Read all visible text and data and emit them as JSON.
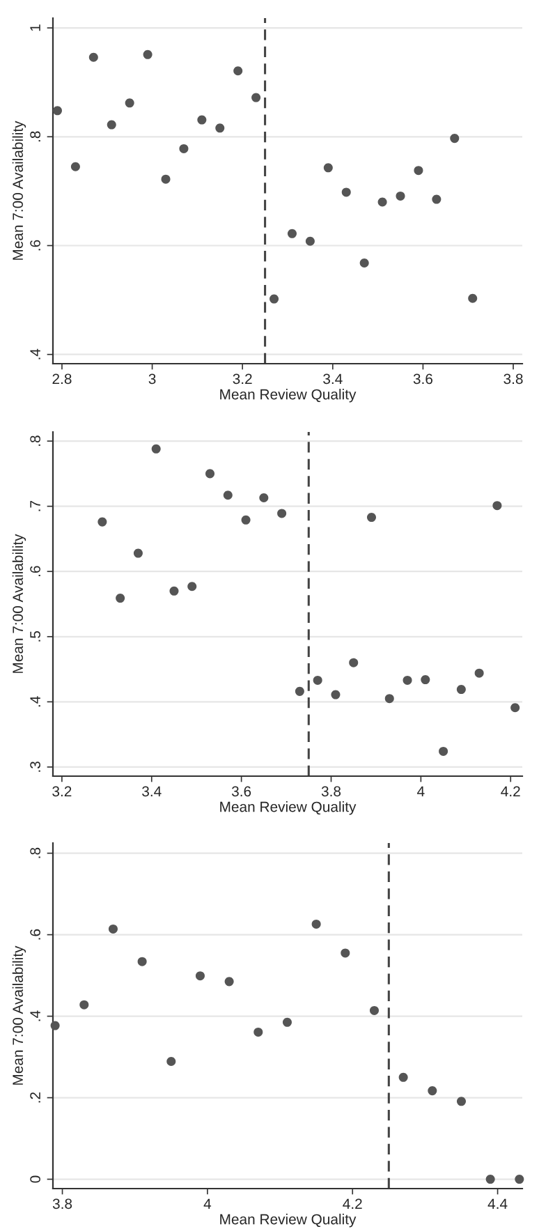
{
  "chart_data": [
    {
      "type": "scatter",
      "xlabel": "Mean Review Quality",
      "ylabel": "Mean 7:00 Availability",
      "marker": "circle",
      "grid": "y",
      "xlim": [
        2.78,
        3.82
      ],
      "ylim": [
        0.383,
        1.018
      ],
      "xticks": [
        2.8,
        3,
        3.2,
        3.4,
        3.6,
        3.8
      ],
      "yticks": [
        {
          "value": 0.4,
          "label": ".4"
        },
        {
          "value": 0.6,
          "label": ".6"
        },
        {
          "value": 0.8,
          "label": ".8"
        },
        {
          "value": 1,
          "label": "1"
        }
      ],
      "ref_lines": [
        {
          "axis": "x",
          "value": 3.25,
          "color": "#444444",
          "line_style": "dashed"
        }
      ],
      "series": [
        {
          "color": "#555555",
          "x": [
            2.79,
            2.83,
            2.87,
            2.91,
            2.95,
            2.99,
            3.03,
            3.07,
            3.11,
            3.15,
            3.19,
            3.23,
            3.27,
            3.31,
            3.35,
            3.39,
            3.43,
            3.47,
            3.51,
            3.55,
            3.59,
            3.63,
            3.67,
            3.71
          ],
          "values": [
            0.848,
            0.745,
            0.946,
            0.822,
            0.862,
            0.951,
            0.722,
            0.778,
            0.831,
            0.816,
            0.921,
            0.872,
            0.502,
            0.622,
            0.608,
            0.743,
            0.698,
            0.568,
            0.68,
            0.691,
            0.738,
            0.685,
            0.797,
            0.503
          ]
        }
      ]
    },
    {
      "type": "scatter",
      "xlabel": "Mean Review Quality",
      "ylabel": "Mean 7:00 Availability",
      "marker": "circle",
      "grid": "y",
      "xlim": [
        3.18,
        4.226
      ],
      "ylim": [
        0.286,
        0.814
      ],
      "xticks": [
        3.2,
        3.4,
        3.6,
        3.8,
        4,
        4.2
      ],
      "yticks": [
        {
          "value": 0.3,
          "label": ".3"
        },
        {
          "value": 0.4,
          "label": ".4"
        },
        {
          "value": 0.5,
          "label": ".5"
        },
        {
          "value": 0.6,
          "label": ".6"
        },
        {
          "value": 0.7,
          "label": ".7"
        },
        {
          "value": 0.8,
          "label": ".8"
        }
      ],
      "ref_lines": [
        {
          "axis": "x",
          "value": 3.75,
          "color": "#444444",
          "line_style": "dashed"
        }
      ],
      "series": [
        {
          "color": "#555555",
          "x": [
            3.29,
            3.33,
            3.37,
            3.41,
            3.45,
            3.49,
            3.53,
            3.57,
            3.61,
            3.65,
            3.69,
            3.73,
            3.77,
            3.81,
            3.85,
            3.89,
            3.93,
            3.97,
            4.01,
            4.05,
            4.09,
            4.13,
            4.17,
            4.21
          ],
          "values": [
            0.676,
            0.559,
            0.628,
            0.788,
            0.57,
            0.577,
            0.75,
            0.717,
            0.679,
            0.713,
            0.689,
            0.416,
            0.433,
            0.411,
            0.46,
            0.683,
            0.405,
            0.433,
            0.434,
            0.324,
            0.419,
            0.444,
            0.701,
            0.391
          ]
        }
      ]
    },
    {
      "type": "scatter",
      "xlabel": "Mean Review Quality",
      "ylabel": "Mean 7:00 Availability",
      "marker": "circle",
      "grid": "y",
      "xlim": [
        3.787,
        4.434
      ],
      "ylim": [
        -0.023,
        0.825
      ],
      "xticks": [
        3.8,
        4,
        4.2,
        4.4
      ],
      "yticks": [
        {
          "value": 0,
          "label": "0"
        },
        {
          "value": 0.2,
          "label": ".2"
        },
        {
          "value": 0.4,
          "label": ".4"
        },
        {
          "value": 0.6,
          "label": ".6"
        },
        {
          "value": 0.8,
          "label": ".8"
        }
      ],
      "ref_lines": [
        {
          "axis": "x",
          "value": 4.25,
          "color": "#444444",
          "line_style": "dashed"
        }
      ],
      "series": [
        {
          "color": "#555555",
          "x": [
            3.79,
            3.83,
            3.87,
            3.91,
            3.95,
            3.99,
            4.03,
            4.07,
            4.11,
            4.15,
            4.19,
            4.23,
            4.27,
            4.31,
            4.35,
            4.39,
            4.43
          ],
          "values": [
            0.377,
            0.428,
            0.614,
            0.534,
            0.289,
            0.499,
            0.485,
            0.361,
            0.385,
            0.626,
            0.555,
            0.414,
            0.25,
            0.217,
            0.191,
            0,
            0
          ]
        }
      ]
    }
  ]
}
